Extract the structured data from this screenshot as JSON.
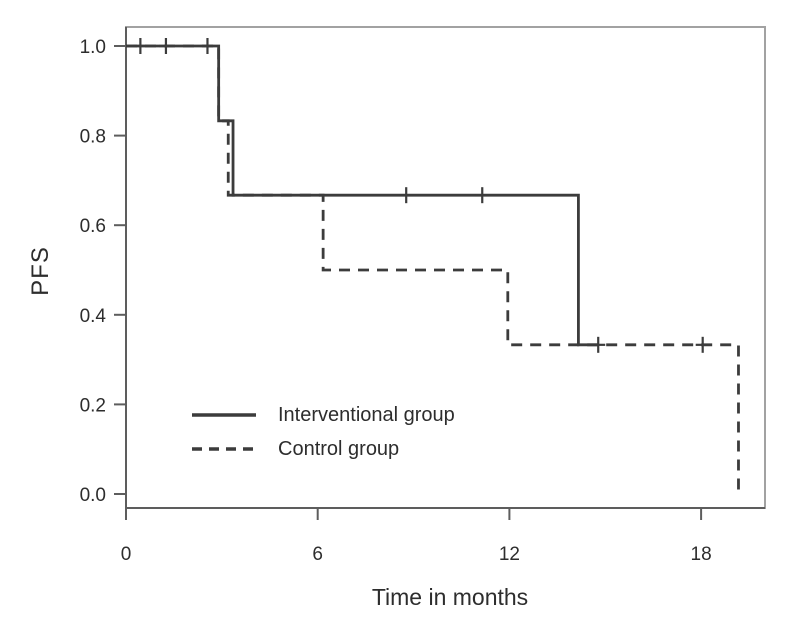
{
  "colors": {
    "line": "#3c3c3c",
    "text": "#2d2d2d",
    "axis": "#5d5d5d",
    "frame": "#a2a2a2",
    "background": "#ffffff"
  },
  "legend": {
    "items": [
      {
        "label": "Interventional group",
        "style": "solid"
      },
      {
        "label": "Control group",
        "style": "dashed"
      }
    ]
  },
  "chart_data": {
    "type": "line",
    "subtype": "kaplan-meier-step",
    "title": "",
    "xlabel": "Time in months",
    "ylabel": "PFS",
    "xlim": [
      0,
      20
    ],
    "ylim": [
      0,
      1.0
    ],
    "xticks": [
      0,
      6,
      12,
      18
    ],
    "yticks": [
      0.0,
      0.2,
      0.4,
      0.6,
      0.8,
      1.0
    ],
    "grid": false,
    "legend_position": "inside-lower-left",
    "series": [
      {
        "name": "Interventional group",
        "style": "solid",
        "steps": [
          [
            0,
            1.0
          ],
          [
            2.9,
            1.0
          ],
          [
            2.9,
            0.833
          ],
          [
            3.35,
            0.833
          ],
          [
            3.35,
            0.667
          ],
          [
            14.16,
            0.667
          ],
          [
            14.16,
            0.333
          ],
          [
            14.78,
            0.333
          ]
        ],
        "censor_marks": [
          [
            0.45,
            1.0
          ],
          [
            1.25,
            1.0
          ],
          [
            2.55,
            1.0
          ],
          [
            8.77,
            0.667
          ],
          [
            11.15,
            0.667
          ],
          [
            14.78,
            0.333
          ]
        ]
      },
      {
        "name": "Control group",
        "style": "dashed",
        "steps": [
          [
            0,
            1.0
          ],
          [
            2.9,
            1.0
          ],
          [
            2.9,
            0.833
          ],
          [
            3.2,
            0.833
          ],
          [
            3.2,
            0.667
          ],
          [
            6.17,
            0.667
          ],
          [
            6.17,
            0.5
          ],
          [
            11.95,
            0.5
          ],
          [
            11.95,
            0.333
          ],
          [
            19.17,
            0.333
          ],
          [
            19.17,
            0.0
          ]
        ],
        "censor_marks": [
          [
            18.05,
            0.333
          ]
        ]
      }
    ]
  }
}
